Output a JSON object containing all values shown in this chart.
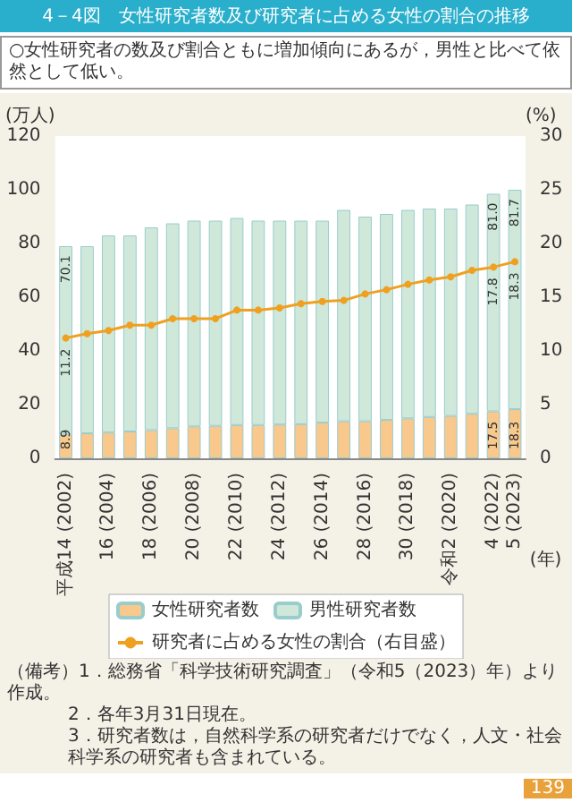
{
  "chart_data": {
    "type": "bar",
    "title": "4－4図　女性研究者数及び研究者に占める女性の割合の推移",
    "subtitle": "○女性研究者の数及び割合ともに増加傾向にあるが，男性と比べて依然として低い。",
    "ylabel": "(万人)",
    "y2label": "(%)",
    "xlabel": "(年)",
    "categories": [
      "平成14\n(2002)",
      null,
      "16\n(2004)",
      null,
      "18\n(2006)",
      null,
      "20\n(2008)",
      null,
      "22\n(2010)",
      null,
      "24\n(2012)",
      null,
      "26\n(2014)",
      null,
      "28\n(2016)",
      null,
      "30\n(2018)",
      null,
      "令和2\n(2020)",
      null,
      "4\n(2022)",
      "5\n(2023)"
    ],
    "stacked": true,
    "ylim": [
      0,
      120
    ],
    "yticks": [
      0,
      20,
      40,
      60,
      80,
      100,
      120
    ],
    "y2lim": [
      0,
      30
    ],
    "y2ticks": [
      0,
      5,
      10,
      15,
      20,
      25,
      30
    ],
    "grid": false,
    "legend": "bottom",
    "series": [
      {
        "name": "女性研究者数",
        "color": "#f8c88c",
        "values": [
          8.9,
          9.3,
          9.6,
          10.0,
          10.5,
          11.2,
          11.9,
          12.1,
          12.4,
          12.4,
          12.6,
          12.7,
          13.3,
          13.8,
          13.8,
          14.3,
          14.9,
          15.4,
          15.8,
          16.6,
          17.5,
          18.3
        ],
        "value_labels": [
          "8.9",
          null,
          null,
          null,
          null,
          null,
          null,
          null,
          null,
          null,
          null,
          null,
          null,
          null,
          null,
          null,
          null,
          null,
          null,
          null,
          "17.5",
          "18.3"
        ]
      },
      {
        "name": "男性研究者数",
        "color": "#cfe8da",
        "values": [
          70.1,
          69.7,
          73.4,
          73.0,
          75.5,
          76.3,
          76.6,
          76.4,
          77.1,
          76.1,
          75.9,
          75.8,
          75.2,
          78.7,
          76.2,
          76.7,
          77.6,
          77.6,
          77.2,
          77.9,
          81.0,
          81.7
        ],
        "value_labels": [
          "70.1",
          null,
          null,
          null,
          null,
          null,
          null,
          null,
          null,
          null,
          null,
          null,
          null,
          null,
          null,
          null,
          null,
          null,
          null,
          null,
          "81.0",
          "81.7"
        ]
      },
      {
        "name": "研究者に占める女性の割合（右目盛）",
        "type": "line",
        "axis": "y2",
        "color": "#f0a020",
        "marker": "circle",
        "values": [
          11.2,
          11.6,
          11.9,
          12.4,
          12.4,
          13.0,
          13.0,
          13.0,
          13.8,
          13.8,
          14.0,
          14.4,
          14.6,
          14.7,
          15.3,
          15.7,
          16.2,
          16.6,
          16.9,
          17.5,
          17.8,
          18.3
        ],
        "value_labels": [
          "11.2",
          null,
          null,
          null,
          null,
          null,
          null,
          null,
          null,
          null,
          null,
          null,
          null,
          null,
          null,
          null,
          null,
          null,
          null,
          null,
          "17.8",
          "18.3"
        ]
      }
    ],
    "annotations": [
      "（備考）1．総務省「科学技術研究調査」（令和5（2023）年）より作成。",
      "2．各年3月31日現在。",
      "3．研究者数は，自然科学系の研究者だけでなく，人文・社会科学系の研究者も含まれている。",
      "139"
    ]
  }
}
